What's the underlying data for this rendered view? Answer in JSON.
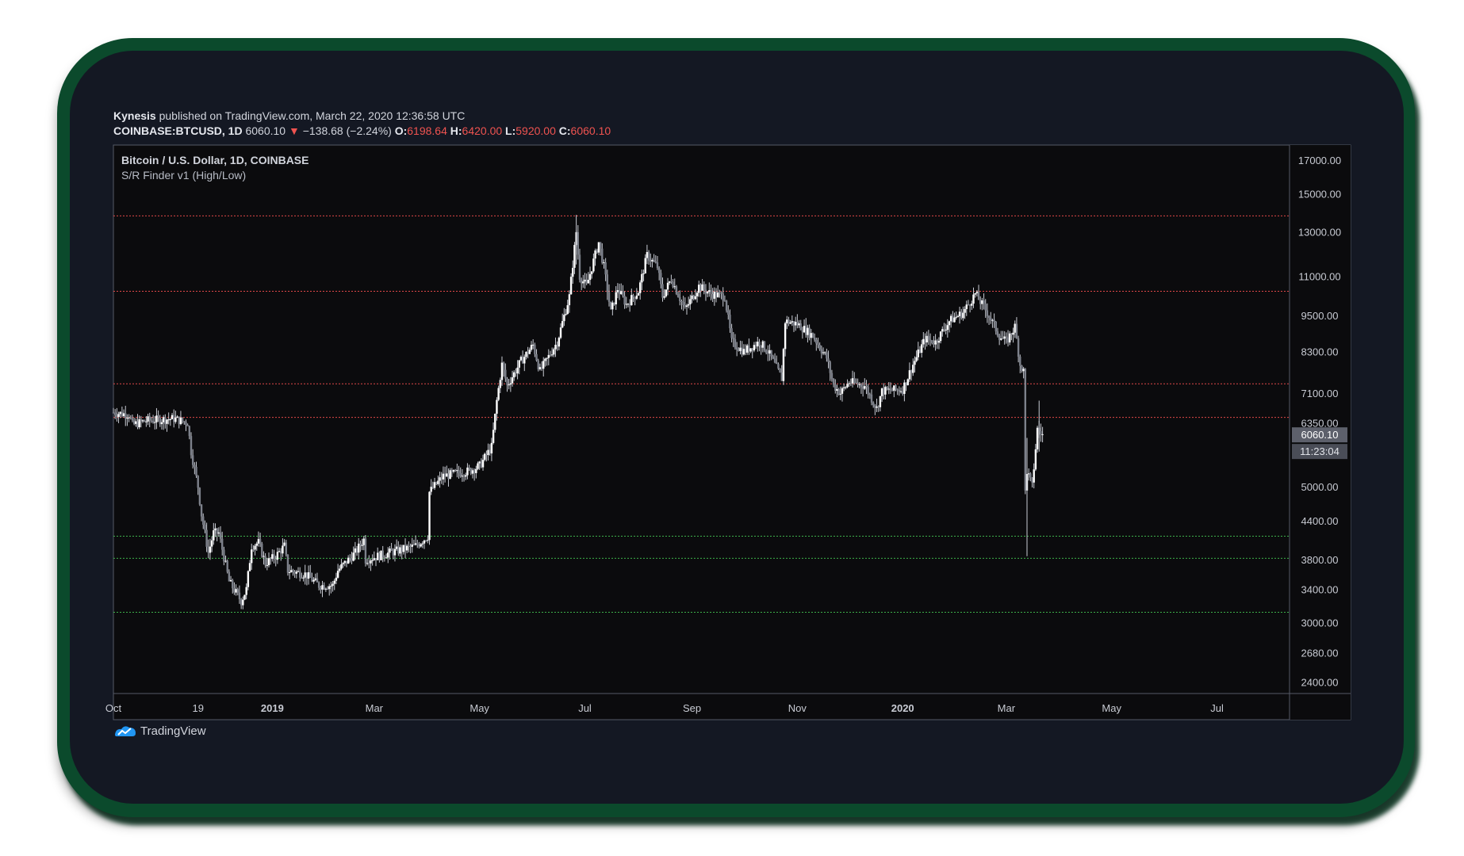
{
  "header": {
    "author": "Kynesis",
    "published_text": "published on TradingView.com, March 22, 2020 12:36:58 UTC",
    "symbol": "COINBASE:BTCUSD, 1D",
    "last": "6060.10",
    "down_arrow": "▼",
    "change": "−138.68 (−2.24%)",
    "o_label": "O:",
    "o_value": "6198.64",
    "h_label": "H:",
    "h_value": "6420.00",
    "l_label": "L:",
    "l_value": "5920.00",
    "c_label": "C:",
    "c_value": "6060.10"
  },
  "chart_title": "Bitcoin / U.S. Dollar, 1D, COINBASE",
  "indicator_name": "S/R Finder v1 (High/Low)",
  "last_price_label": "6060.10",
  "countdown_label": "11:23:04",
  "watermark": "TradingView",
  "colors": {
    "background": "#0b0b0d",
    "candles": "#c9ccd4",
    "resistance": "#e04848",
    "support": "#3db14a",
    "frame": "#0b4a2c",
    "text_red": "#ef5350"
  },
  "chart_data": {
    "type": "candlestick",
    "title": "Bitcoin / U.S. Dollar, 1D, COINBASE",
    "y_scale": "log",
    "ylim": [
      2300,
      18000
    ],
    "y_ticks": [
      {
        "value": 17000,
        "label": "17000.00"
      },
      {
        "value": 15000,
        "label": "15000.00"
      },
      {
        "value": 13000,
        "label": "13000.00"
      },
      {
        "value": 11000,
        "label": "11000.00"
      },
      {
        "value": 9500,
        "label": "9500.00"
      },
      {
        "value": 8300,
        "label": "8300.00"
      },
      {
        "value": 7100,
        "label": "7100.00"
      },
      {
        "value": 6350,
        "label": "6350.00"
      },
      {
        "value": 5000,
        "label": "5000.00"
      },
      {
        "value": 4400,
        "label": "4400.00"
      },
      {
        "value": 3800,
        "label": "3800.00"
      },
      {
        "value": 3400,
        "label": "3400.00"
      },
      {
        "value": 3000,
        "label": "3000.00"
      },
      {
        "value": 2680,
        "label": "2680.00"
      },
      {
        "value": 2400,
        "label": "2400.00"
      }
    ],
    "x_range": [
      "2018-10-01",
      "2020-08-12"
    ],
    "x_ticks": [
      {
        "date": "2018-10-01",
        "label": "Oct"
      },
      {
        "date": "2018-11-19",
        "label": "19"
      },
      {
        "date": "2019-01-01",
        "label": "2019"
      },
      {
        "date": "2019-03-01",
        "label": "Mar"
      },
      {
        "date": "2019-05-01",
        "label": "May"
      },
      {
        "date": "2019-07-01",
        "label": "Jul"
      },
      {
        "date": "2019-09-01",
        "label": "Sep"
      },
      {
        "date": "2019-11-01",
        "label": "Nov"
      },
      {
        "date": "2020-01-01",
        "label": "2020"
      },
      {
        "date": "2020-03-01",
        "label": "Mar"
      },
      {
        "date": "2020-05-01",
        "label": "May"
      },
      {
        "date": "2020-07-01",
        "label": "Jul"
      }
    ],
    "resistance_levels": [
      13800,
      10400,
      7350,
      6480
    ],
    "support_levels": [
      4150,
      3820,
      3120
    ],
    "close_path": [
      [
        "2018-10-01",
        6600
      ],
      [
        "2018-10-10",
        6550
      ],
      [
        "2018-10-12",
        6300
      ],
      [
        "2018-10-20",
        6400
      ],
      [
        "2018-11-05",
        6450
      ],
      [
        "2018-11-13",
        6350
      ],
      [
        "2018-11-15",
        5700
      ],
      [
        "2018-11-19",
        5000
      ],
      [
        "2018-11-21",
        4500
      ],
      [
        "2018-11-25",
        3900
      ],
      [
        "2018-11-28",
        4200
      ],
      [
        "2018-12-01",
        4200
      ],
      [
        "2018-12-07",
        3500
      ],
      [
        "2018-12-14",
        3250
      ],
      [
        "2018-12-17",
        3400
      ],
      [
        "2018-12-20",
        4000
      ],
      [
        "2018-12-24",
        4050
      ],
      [
        "2018-12-28",
        3750
      ],
      [
        "2019-01-03",
        3850
      ],
      [
        "2019-01-08",
        4000
      ],
      [
        "2019-01-10",
        3650
      ],
      [
        "2019-01-20",
        3600
      ],
      [
        "2019-01-28",
        3450
      ],
      [
        "2019-02-05",
        3450
      ],
      [
        "2019-02-08",
        3650
      ],
      [
        "2019-02-18",
        3900
      ],
      [
        "2019-02-23",
        4100
      ],
      [
        "2019-02-24",
        3800
      ],
      [
        "2019-03-10",
        3900
      ],
      [
        "2019-03-25",
        4000
      ],
      [
        "2019-04-01",
        4150
      ],
      [
        "2019-04-02",
        4900
      ],
      [
        "2019-04-10",
        5200
      ],
      [
        "2019-04-25",
        5300
      ],
      [
        "2019-05-01",
        5400
      ],
      [
        "2019-05-08",
        5800
      ],
      [
        "2019-05-11",
        6900
      ],
      [
        "2019-05-14",
        7900
      ],
      [
        "2019-05-17",
        7300
      ],
      [
        "2019-05-25",
        8000
      ],
      [
        "2019-06-01",
        8500
      ],
      [
        "2019-06-05",
        7700
      ],
      [
        "2019-06-15",
        8600
      ],
      [
        "2019-06-22",
        10200
      ],
      [
        "2019-06-26",
        13000
      ],
      [
        "2019-06-28",
        11000
      ],
      [
        "2019-07-02",
        10600
      ],
      [
        "2019-07-09",
        12500
      ],
      [
        "2019-07-12",
        11400
      ],
      [
        "2019-07-16",
        9600
      ],
      [
        "2019-07-20",
        10500
      ],
      [
        "2019-07-25",
        9900
      ],
      [
        "2019-08-01",
        10400
      ],
      [
        "2019-08-06",
        11900
      ],
      [
        "2019-08-12",
        11400
      ],
      [
        "2019-08-15",
        10200
      ],
      [
        "2019-08-20",
        10900
      ],
      [
        "2019-08-28",
        9700
      ],
      [
        "2019-09-05",
        10600
      ],
      [
        "2019-09-12",
        10300
      ],
      [
        "2019-09-20",
        10200
      ],
      [
        "2019-09-24",
        8600
      ],
      [
        "2019-10-01",
        8300
      ],
      [
        "2019-10-10",
        8600
      ],
      [
        "2019-10-15",
        8300
      ],
      [
        "2019-10-23",
        7500
      ],
      [
        "2019-10-25",
        9300
      ],
      [
        "2019-11-01",
        9200
      ],
      [
        "2019-11-10",
        8800
      ],
      [
        "2019-11-18",
        8100
      ],
      [
        "2019-11-22",
        7300
      ],
      [
        "2019-11-26",
        7100
      ],
      [
        "2019-12-01",
        7400
      ],
      [
        "2019-12-10",
        7300
      ],
      [
        "2019-12-17",
        6700
      ],
      [
        "2019-12-20",
        7150
      ],
      [
        "2020-01-01",
        7200
      ],
      [
        "2020-01-07",
        7900
      ],
      [
        "2020-01-14",
        8700
      ],
      [
        "2020-01-20",
        8600
      ],
      [
        "2020-01-28",
        9300
      ],
      [
        "2020-02-05",
        9600
      ],
      [
        "2020-02-12",
        10300
      ],
      [
        "2020-02-19",
        9600
      ],
      [
        "2020-02-26",
        8800
      ],
      [
        "2020-03-01",
        8600
      ],
      [
        "2020-03-06",
        9100
      ],
      [
        "2020-03-09",
        7900
      ],
      [
        "2020-03-11",
        7700
      ],
      [
        "2020-03-12",
        4900
      ],
      [
        "2020-03-13",
        5300
      ],
      [
        "2020-03-16",
        5000
      ],
      [
        "2020-03-19",
        6200
      ],
      [
        "2020-03-22",
        6060
      ]
    ],
    "last_price": 6060.1
  }
}
